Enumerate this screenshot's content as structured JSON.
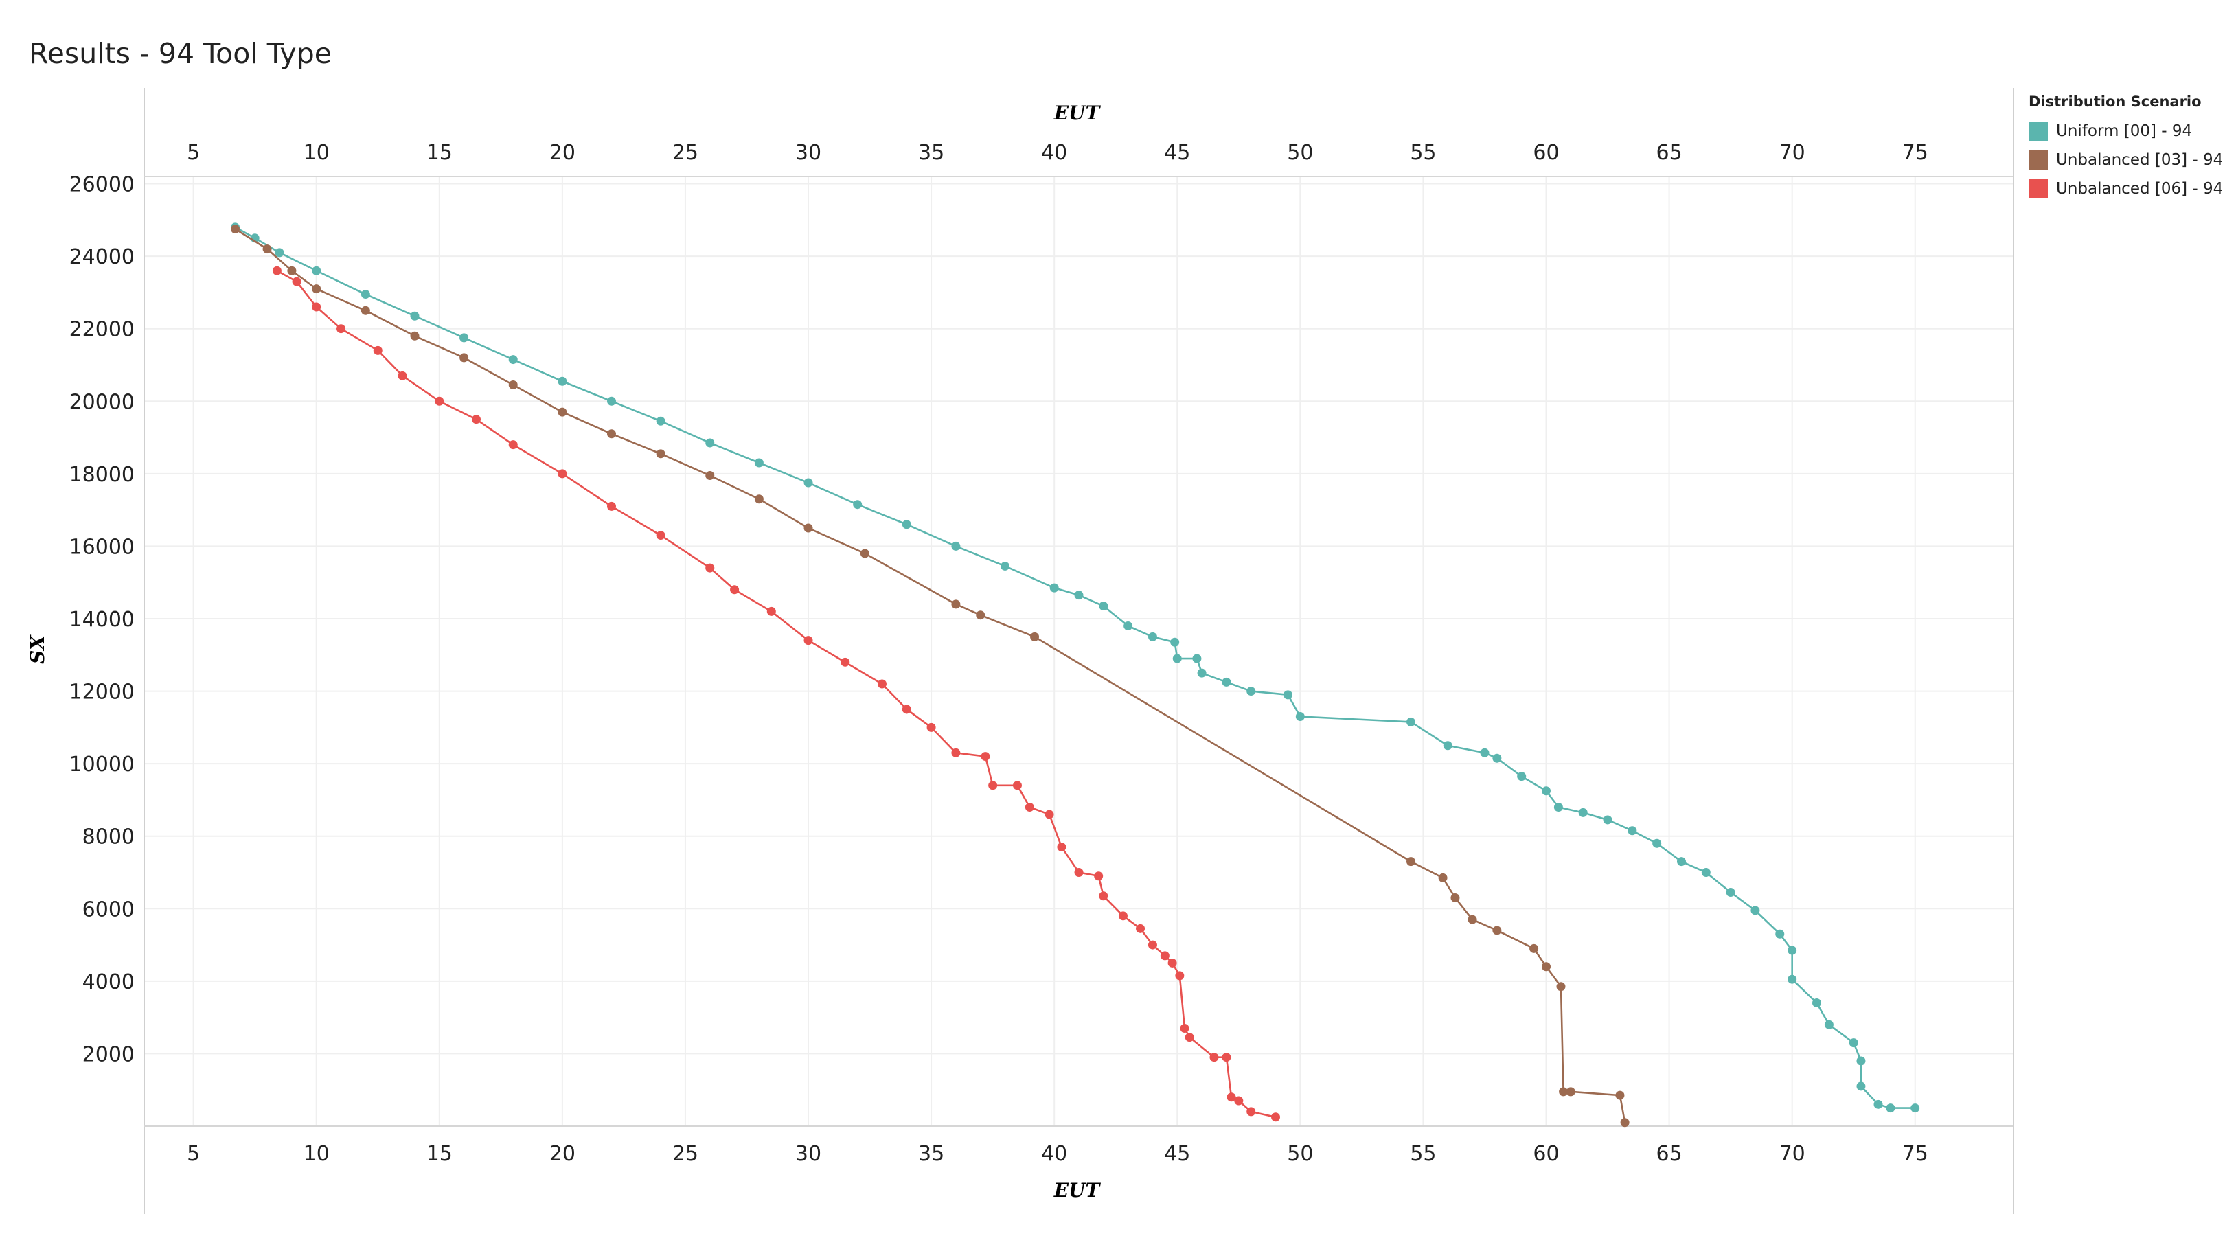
{
  "title": "Results - 94 Tool Type",
  "legend": {
    "title": "Distribution Scenario",
    "items": [
      {
        "label": "Uniform [00] - 94",
        "color": "#5bb5ae"
      },
      {
        "label": "Unbalanced [03] - 94",
        "color": "#9c6a50"
      },
      {
        "label": "Unbalanced [06] - 94",
        "color": "#e8514f"
      }
    ]
  },
  "chart_data": {
    "type": "line",
    "title": "Results - 94 Tool Type",
    "xlabel": "EUT",
    "ylabel": "SX",
    "xlim": [
      3,
      79
    ],
    "ylim": [
      0,
      26200
    ],
    "xticks": [
      5,
      10,
      15,
      20,
      25,
      30,
      35,
      40,
      45,
      50,
      55,
      60,
      65,
      70,
      75
    ],
    "yticks": [
      2000,
      4000,
      6000,
      8000,
      10000,
      12000,
      14000,
      16000,
      18000,
      20000,
      22000,
      24000,
      26000
    ],
    "grid": true,
    "legend_position": "top-right",
    "series": [
      {
        "name": "Uniform [00] - 94",
        "color": "#5bb5ae",
        "points": [
          [
            6.7,
            24800
          ],
          [
            7.5,
            24500
          ],
          [
            8.5,
            24100
          ],
          [
            10,
            23600
          ],
          [
            12,
            22950
          ],
          [
            14,
            22350
          ],
          [
            16,
            21750
          ],
          [
            18,
            21150
          ],
          [
            20,
            20550
          ],
          [
            22,
            20000
          ],
          [
            24,
            19450
          ],
          [
            26,
            18850
          ],
          [
            28,
            18300
          ],
          [
            30,
            17750
          ],
          [
            32,
            17150
          ],
          [
            34,
            16600
          ],
          [
            36,
            16000
          ],
          [
            38,
            15450
          ],
          [
            40,
            14850
          ],
          [
            41,
            14650
          ],
          [
            42,
            14350
          ],
          [
            43,
            13800
          ],
          [
            44,
            13500
          ],
          [
            44.9,
            13350
          ],
          [
            45,
            12900
          ],
          [
            45.8,
            12900
          ],
          [
            46,
            12500
          ],
          [
            47,
            12250
          ],
          [
            48,
            12000
          ],
          [
            49.5,
            11900
          ],
          [
            50,
            11300
          ],
          [
            54.5,
            11150
          ],
          [
            56,
            10500
          ],
          [
            57.5,
            10300
          ],
          [
            58,
            10150
          ],
          [
            59,
            9650
          ],
          [
            60,
            9250
          ],
          [
            60.5,
            8800
          ],
          [
            61.5,
            8650
          ],
          [
            62.5,
            8450
          ],
          [
            63.5,
            8150
          ],
          [
            64.5,
            7800
          ],
          [
            65.5,
            7300
          ],
          [
            66.5,
            7000
          ],
          [
            67.5,
            6450
          ],
          [
            68.5,
            5950
          ],
          [
            69.5,
            5300
          ],
          [
            70,
            4850
          ],
          [
            70,
            4050
          ],
          [
            71,
            3400
          ],
          [
            71.5,
            2800
          ],
          [
            72.5,
            2300
          ],
          [
            72.8,
            1800
          ],
          [
            72.8,
            1100
          ],
          [
            73.5,
            600
          ],
          [
            74,
            500
          ],
          [
            75,
            500
          ]
        ]
      },
      {
        "name": "Unbalanced [03] - 94",
        "color": "#9c6a50",
        "points": [
          [
            6.7,
            24750
          ],
          [
            8,
            24200
          ],
          [
            9,
            23600
          ],
          [
            10,
            23100
          ],
          [
            12,
            22500
          ],
          [
            14,
            21800
          ],
          [
            16,
            21200
          ],
          [
            18,
            20450
          ],
          [
            20,
            19700
          ],
          [
            22,
            19100
          ],
          [
            24,
            18550
          ],
          [
            26,
            17950
          ],
          [
            28,
            17300
          ],
          [
            30,
            16500
          ],
          [
            32.3,
            15800
          ],
          [
            36,
            14400
          ],
          [
            37,
            14100
          ],
          [
            39.2,
            13500
          ],
          [
            54.5,
            7300
          ],
          [
            55.8,
            6850
          ],
          [
            56.3,
            6300
          ],
          [
            57,
            5700
          ],
          [
            58,
            5400
          ],
          [
            59.5,
            4900
          ],
          [
            60,
            4400
          ],
          [
            60.6,
            3850
          ],
          [
            60.7,
            950
          ],
          [
            61,
            950
          ],
          [
            63,
            850
          ],
          [
            63.2,
            100
          ]
        ]
      },
      {
        "name": "Unbalanced [06] - 94",
        "color": "#e8514f",
        "points": [
          [
            8.4,
            23600
          ],
          [
            9.2,
            23300
          ],
          [
            10,
            22600
          ],
          [
            11,
            22000
          ],
          [
            12.5,
            21400
          ],
          [
            13.5,
            20700
          ],
          [
            15,
            20000
          ],
          [
            16.5,
            19500
          ],
          [
            18,
            18800
          ],
          [
            20,
            18000
          ],
          [
            22,
            17100
          ],
          [
            24,
            16300
          ],
          [
            26,
            15400
          ],
          [
            27,
            14800
          ],
          [
            28.5,
            14200
          ],
          [
            30,
            13400
          ],
          [
            31.5,
            12800
          ],
          [
            33,
            12200
          ],
          [
            34,
            11500
          ],
          [
            35,
            11000
          ],
          [
            36,
            10300
          ],
          [
            37.2,
            10200
          ],
          [
            37.5,
            9400
          ],
          [
            38.5,
            9400
          ],
          [
            39,
            8800
          ],
          [
            39.8,
            8600
          ],
          [
            40.3,
            7700
          ],
          [
            41,
            7000
          ],
          [
            41.8,
            6900
          ],
          [
            42,
            6350
          ],
          [
            42.8,
            5800
          ],
          [
            43.5,
            5450
          ],
          [
            44,
            5000
          ],
          [
            44.5,
            4700
          ],
          [
            44.8,
            4500
          ],
          [
            45.1,
            4150
          ],
          [
            45.3,
            2700
          ],
          [
            45.5,
            2450
          ],
          [
            46.5,
            1900
          ],
          [
            47,
            1900
          ],
          [
            47.2,
            800
          ],
          [
            47.5,
            700
          ],
          [
            48,
            400
          ],
          [
            49,
            250
          ]
        ]
      }
    ]
  }
}
